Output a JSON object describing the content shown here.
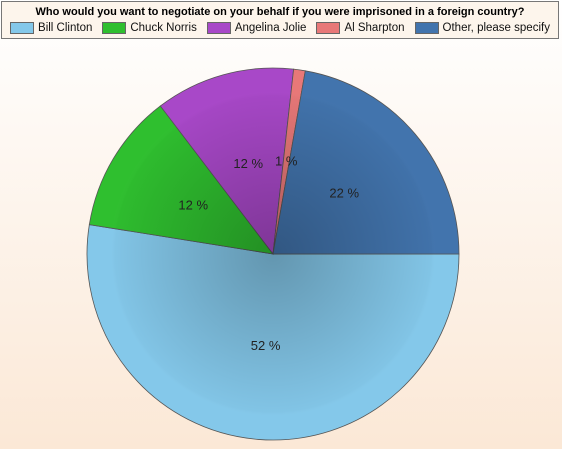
{
  "chart_data": {
    "type": "pie",
    "title": "Who would you want to negotiate on your behalf if you were imprisoned in a foreign country?",
    "categories": [
      "Bill Clinton",
      "Chuck Norris",
      "Angelina Jolie",
      "Al Sharpton",
      "Other, please specify"
    ],
    "values": [
      52,
      12,
      12,
      1,
      22
    ],
    "value_labels": [
      "52 %",
      "12 %",
      "12 %",
      "1 %",
      "22 %"
    ],
    "colors": [
      "#84c8ea",
      "#2fbf2f",
      "#a848c8",
      "#e87878",
      "#4274ad"
    ],
    "legend": "top"
  }
}
